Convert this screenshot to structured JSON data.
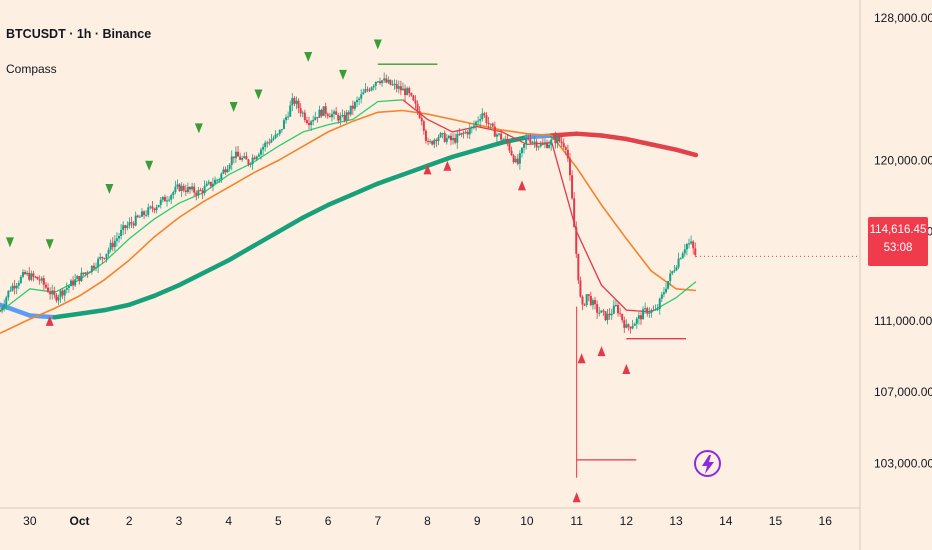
{
  "header": {
    "title": "BTCUSDT · 1h · Binance",
    "indicator": "Compass"
  },
  "price_tag": {
    "price": "114,616.45",
    "countdown": "53:08"
  },
  "colors": {
    "background": "#fdf0e2",
    "candle_up": "#16a085",
    "candle_down": "#e53848",
    "ema_fast": "#2ecc71",
    "ema_mid": "#f5832b",
    "ma_slow_up": "#17a07a",
    "ma_slow_down": "#e0414a",
    "ma_slow_neutral": "#5b9cf5",
    "signal_up": "#3a9d38",
    "signal_down": "#e53848",
    "bolt": "#8a2be2"
  },
  "chart_data": {
    "type": "candlestick",
    "symbol": "BTCUSDT",
    "timeframe": "1h",
    "exchange": "Binance",
    "ylim": [
      100500,
      129000
    ],
    "y_ticks": [
      {
        "value": 128000,
        "label": "128,000.00"
      },
      {
        "value": 120000,
        "label": "120,000.00"
      },
      {
        "value": 116000,
        "label": "116,000.00"
      },
      {
        "value": 111000,
        "label": "111,000.00"
      },
      {
        "value": 107000,
        "label": "107,000.00"
      },
      {
        "value": 103000,
        "label": "103,000.00"
      }
    ],
    "x_ticks": [
      {
        "day": 30,
        "label": "30",
        "bold": false
      },
      {
        "day": 31,
        "label": "Oct",
        "bold": true
      },
      {
        "day": 32,
        "label": "2",
        "bold": false
      },
      {
        "day": 33,
        "label": "3",
        "bold": false
      },
      {
        "day": 34,
        "label": "4",
        "bold": false
      },
      {
        "day": 35,
        "label": "5",
        "bold": false
      },
      {
        "day": 36,
        "label": "6",
        "bold": false
      },
      {
        "day": 37,
        "label": "7",
        "bold": false
      },
      {
        "day": 38,
        "label": "8",
        "bold": false
      },
      {
        "day": 39,
        "label": "9",
        "bold": false
      },
      {
        "day": 40,
        "label": "10",
        "bold": false
      },
      {
        "day": 41,
        "label": "11",
        "bold": false
      },
      {
        "day": 42,
        "label": "12",
        "bold": false
      },
      {
        "day": 43,
        "label": "13",
        "bold": false
      },
      {
        "day": 44,
        "label": "14",
        "bold": false
      },
      {
        "day": 45,
        "label": "15",
        "bold": false
      },
      {
        "day": 46,
        "label": "16",
        "bold": false
      }
    ],
    "last_price": 114616.45,
    "price_path": [
      [
        29.4,
        111600
      ],
      [
        29.6,
        112800
      ],
      [
        29.9,
        113600
      ],
      [
        30.2,
        113300
      ],
      [
        30.5,
        112300
      ],
      [
        30.8,
        113000
      ],
      [
        31.2,
        113900
      ],
      [
        31.5,
        114700
      ],
      [
        31.9,
        116200
      ],
      [
        32.3,
        117000
      ],
      [
        32.7,
        117800
      ],
      [
        33.0,
        118500
      ],
      [
        33.4,
        118200
      ],
      [
        33.8,
        119000
      ],
      [
        34.1,
        120300
      ],
      [
        34.4,
        119900
      ],
      [
        34.8,
        121100
      ],
      [
        35.0,
        121400
      ],
      [
        35.3,
        123400
      ],
      [
        35.6,
        122200
      ],
      [
        35.9,
        122800
      ],
      [
        36.3,
        122300
      ],
      [
        36.7,
        123700
      ],
      [
        37.0,
        124600
      ],
      [
        37.3,
        124200
      ],
      [
        37.6,
        123800
      ],
      [
        37.9,
        122300
      ],
      [
        38.0,
        120800
      ],
      [
        38.2,
        121400
      ],
      [
        38.5,
        121100
      ],
      [
        38.9,
        121800
      ],
      [
        39.1,
        122700
      ],
      [
        39.3,
        121700
      ],
      [
        39.6,
        121000
      ],
      [
        39.8,
        119700
      ],
      [
        40.0,
        121300
      ],
      [
        40.3,
        120800
      ],
      [
        40.6,
        121200
      ],
      [
        40.8,
        120800
      ],
      [
        40.9,
        118000
      ],
      [
        41.0,
        114500
      ],
      [
        41.1,
        111500
      ],
      [
        41.2,
        112500
      ],
      [
        41.4,
        111600
      ],
      [
        41.6,
        111200
      ],
      [
        41.8,
        111800
      ],
      [
        42.0,
        110600
      ],
      [
        42.2,
        111000
      ],
      [
        42.4,
        111600
      ],
      [
        42.6,
        111500
      ],
      [
        42.8,
        113000
      ],
      [
        43.0,
        114200
      ],
      [
        43.2,
        115300
      ],
      [
        43.3,
        115300
      ],
      [
        43.4,
        114600
      ]
    ],
    "spike_low": {
      "day": 41.0,
      "value": 102200
    },
    "series": [
      {
        "name": "",
        "kind": "ema_fast",
        "points": [
          [
            29.4,
            111500
          ],
          [
            30.0,
            112800
          ],
          [
            30.5,
            112600
          ],
          [
            31.0,
            113300
          ],
          [
            31.5,
            114300
          ],
          [
            32.0,
            115600
          ],
          [
            32.5,
            116700
          ],
          [
            33.0,
            117600
          ],
          [
            33.5,
            118200
          ],
          [
            34.0,
            119200
          ],
          [
            34.5,
            119900
          ],
          [
            35.0,
            120800
          ],
          [
            35.5,
            121600
          ],
          [
            36.0,
            122000
          ],
          [
            36.5,
            122300
          ],
          [
            37.0,
            123300
          ],
          [
            37.5,
            123400
          ],
          [
            38.0,
            122300
          ],
          [
            38.5,
            121600
          ],
          [
            39.0,
            121900
          ],
          [
            39.5,
            121600
          ],
          [
            40.0,
            120900
          ],
          [
            40.5,
            121000
          ],
          [
            41.0,
            116000
          ],
          [
            41.5,
            113000
          ],
          [
            42.0,
            111600
          ],
          [
            42.5,
            111500
          ],
          [
            43.0,
            112300
          ],
          [
            43.4,
            113200
          ]
        ]
      },
      {
        "name": "",
        "kind": "ema_mid",
        "points": [
          [
            29.4,
            110300
          ],
          [
            30.0,
            111100
          ],
          [
            30.5,
            111700
          ],
          [
            31.0,
            112400
          ],
          [
            31.5,
            113300
          ],
          [
            32.0,
            114400
          ],
          [
            32.5,
            115700
          ],
          [
            33.0,
            116800
          ],
          [
            33.5,
            117700
          ],
          [
            34.0,
            118500
          ],
          [
            34.5,
            119300
          ],
          [
            35.0,
            120000
          ],
          [
            35.5,
            120800
          ],
          [
            36.0,
            121600
          ],
          [
            36.5,
            122200
          ],
          [
            37.0,
            122700
          ],
          [
            37.5,
            122800
          ],
          [
            38.0,
            122600
          ],
          [
            38.5,
            122300
          ],
          [
            39.0,
            122000
          ],
          [
            39.5,
            121700
          ],
          [
            40.0,
            121500
          ],
          [
            40.5,
            121400
          ],
          [
            41.0,
            119600
          ],
          [
            41.5,
            117500
          ],
          [
            42.0,
            115600
          ],
          [
            42.5,
            113800
          ],
          [
            43.0,
            112800
          ],
          [
            43.4,
            112700
          ]
        ]
      },
      {
        "name": "",
        "kind": "ma_slow",
        "points": [
          [
            29.4,
            111900
          ],
          [
            30.0,
            111300
          ],
          [
            30.5,
            111200
          ],
          [
            31.0,
            111400
          ],
          [
            31.5,
            111600
          ],
          [
            32.0,
            111900
          ],
          [
            32.5,
            112400
          ],
          [
            33.0,
            113000
          ],
          [
            33.5,
            113700
          ],
          [
            34.0,
            114400
          ],
          [
            34.5,
            115200
          ],
          [
            35.0,
            116000
          ],
          [
            35.5,
            116800
          ],
          [
            36.0,
            117500
          ],
          [
            36.5,
            118100
          ],
          [
            37.0,
            118700
          ],
          [
            37.5,
            119200
          ],
          [
            38.0,
            119700
          ],
          [
            38.5,
            120200
          ],
          [
            39.0,
            120600
          ],
          [
            39.5,
            121000
          ],
          [
            40.0,
            121300
          ],
          [
            40.5,
            121400
          ],
          [
            41.0,
            121500
          ],
          [
            41.5,
            121400
          ],
          [
            42.0,
            121200
          ],
          [
            42.5,
            120900
          ],
          [
            43.0,
            120600
          ],
          [
            43.4,
            120300
          ]
        ]
      }
    ],
    "signals_down": [
      [
        29.6,
        115400
      ],
      [
        30.4,
        115300
      ],
      [
        31.6,
        118400
      ],
      [
        32.4,
        119700
      ],
      [
        33.4,
        121800
      ],
      [
        34.1,
        123000
      ],
      [
        34.6,
        123700
      ],
      [
        35.6,
        125800
      ],
      [
        36.3,
        124800
      ],
      [
        37.0,
        126500
      ]
    ],
    "signals_up": [
      [
        30.4,
        111000
      ],
      [
        38.0,
        119500
      ],
      [
        38.4,
        119700
      ],
      [
        39.9,
        118600
      ],
      [
        41.1,
        108900
      ],
      [
        41.5,
        109300
      ],
      [
        42.0,
        108300
      ],
      [
        41.0,
        101100
      ]
    ],
    "levels": [
      {
        "kind": "resistance",
        "y": 125400,
        "x0": 37.0,
        "x1": 38.2
      },
      {
        "kind": "support",
        "y": 110000,
        "x0": 42.0,
        "x1": 43.2
      },
      {
        "kind": "support",
        "y": 103200,
        "x0": 41.0,
        "x1": 42.2
      }
    ]
  }
}
